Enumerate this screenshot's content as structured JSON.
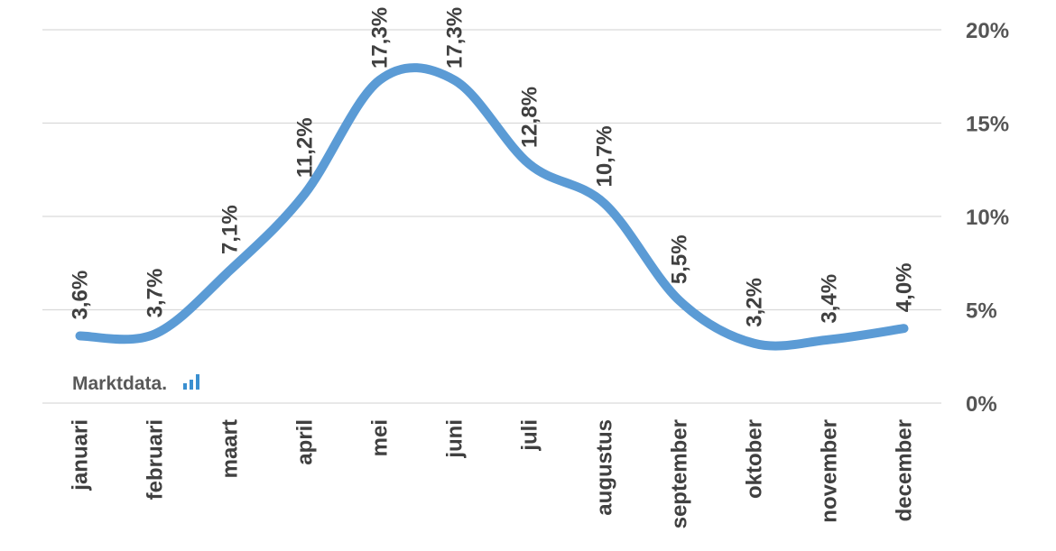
{
  "chart_data": {
    "type": "line",
    "categories": [
      "januari",
      "februari",
      "maart",
      "april",
      "mei",
      "juni",
      "juli",
      "augustus",
      "september",
      "oktober",
      "november",
      "december"
    ],
    "series": [
      {
        "values": [
          3.6,
          3.7,
          7.1,
          11.2,
          17.3,
          17.3,
          12.8,
          10.7,
          5.5,
          3.2,
          3.4,
          4.0
        ],
        "labels": [
          "3,6%",
          "3,7%",
          "7,1%",
          "11,2%",
          "17,3%",
          "17,3%",
          "12,8%",
          "10,7%",
          "5,5%",
          "3,2%",
          "3,4%",
          "4,0%"
        ],
        "color": "#5b9bd5"
      }
    ],
    "ylim": [
      0,
      20
    ],
    "yticks": [
      0,
      5,
      10,
      15,
      20
    ],
    "ytick_labels": [
      "0%",
      "5%",
      "10%",
      "15%",
      "20%"
    ],
    "y_axis_position": "right",
    "grid": true,
    "smooth": true,
    "x_labels_rotated": true
  },
  "watermark": {
    "text": "Marktdata.",
    "bar_color": "#3a8fd0"
  }
}
